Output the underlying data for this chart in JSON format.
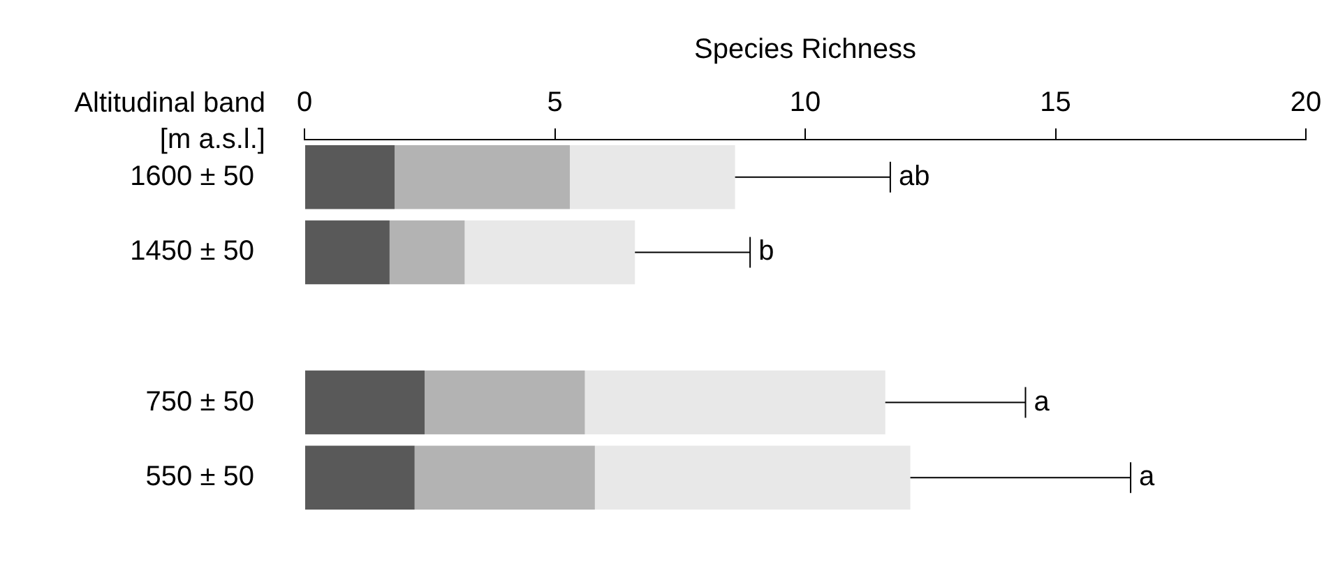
{
  "chart_data": {
    "type": "bar",
    "orientation": "horizontal",
    "stacked": true,
    "xlabel": "Species Richness",
    "ylabel": "Altitudinal band\n[m a.s.l.]",
    "categories": [
      "1600 ± 50",
      "1450 ± 50",
      null,
      "750 ± 50",
      "550 ± 50"
    ],
    "series": [
      {
        "color": "#595959",
        "values": [
          1.8,
          1.7,
          null,
          2.4,
          2.2
        ]
      },
      {
        "color": "#b3b3b3",
        "values": [
          3.5,
          1.5,
          null,
          3.2,
          3.6
        ]
      },
      {
        "color": "#e8e8e8",
        "values": [
          3.3,
          3.4,
          null,
          6.0,
          6.3
        ],
        "errors": [
          [
            8.6,
            11.7
          ],
          [
            6.6,
            8.9
          ],
          null,
          [
            11.6,
            14.4
          ],
          [
            12.1,
            16.5
          ]
        ]
      }
    ],
    "xlim": [
      0,
      20
    ],
    "xticks": [
      0,
      5,
      10,
      15,
      20
    ],
    "grid": false,
    "legend": false,
    "annotations": [
      "ab",
      "b",
      "a",
      "a"
    ]
  }
}
